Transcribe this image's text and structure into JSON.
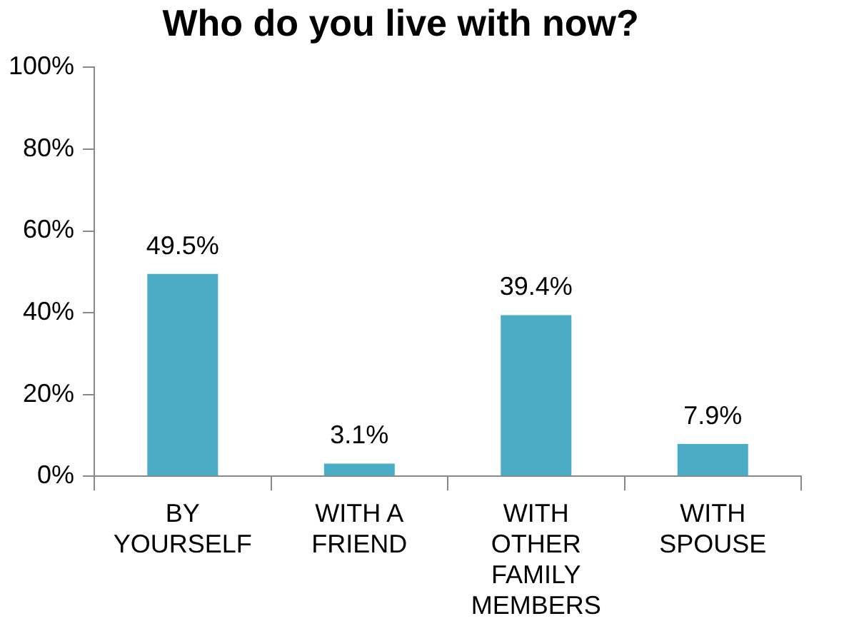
{
  "chart_data": {
    "type": "bar",
    "title": "Who do you live with now?",
    "categories": [
      "BY YOURSELF",
      "WITH A FRIEND",
      "WITH OTHER FAMILY MEMBERS",
      "WITH SPOUSE"
    ],
    "values": [
      49.5,
      3.1,
      39.4,
      7.9
    ],
    "color": "#4bacc6",
    "value_labels": [
      "49.5%",
      "3.1%",
      "39.4%",
      "7.9%"
    ],
    "ylim": [
      0,
      100
    ],
    "yticks": [
      {
        "value": 0,
        "label": "0%"
      },
      {
        "value": 20,
        "label": "20%"
      },
      {
        "value": 40,
        "label": "40%"
      },
      {
        "value": 60,
        "label": "60%"
      },
      {
        "value": 80,
        "label": "80%"
      },
      {
        "value": 100,
        "label": "100%"
      }
    ],
    "grid": false,
    "legend": false
  }
}
